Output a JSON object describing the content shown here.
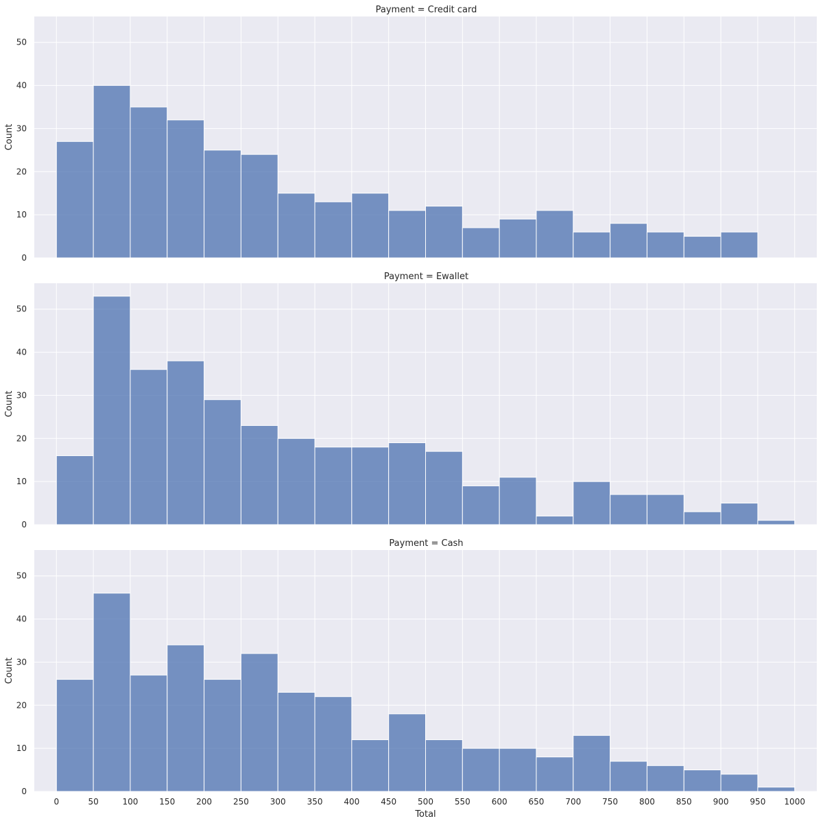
{
  "chart_data": {
    "type": "bar",
    "xlabel": "Total",
    "ylabel": "Count",
    "xlim": [
      -30,
      1030
    ],
    "ylim": [
      0,
      56
    ],
    "xticks": [
      0,
      50,
      100,
      150,
      200,
      250,
      300,
      350,
      400,
      450,
      500,
      550,
      600,
      650,
      700,
      750,
      800,
      850,
      900,
      950,
      1000
    ],
    "yticks": [
      0,
      10,
      20,
      30,
      40,
      50
    ],
    "bin_edges": [
      0,
      50,
      100,
      150,
      200,
      250,
      300,
      350,
      400,
      450,
      500,
      550,
      600,
      650,
      700,
      750,
      800,
      850,
      900,
      950,
      1000
    ],
    "grid": true,
    "bar_color": "#4c72b0",
    "background_color": "#eaeaf2",
    "panels": [
      {
        "title": "Payment = Credit card",
        "values": [
          27,
          40,
          35,
          32,
          25,
          24,
          15,
          13,
          15,
          11,
          12,
          7,
          9,
          11,
          6,
          8,
          6,
          5,
          6,
          0
        ]
      },
      {
        "title": "Payment = Ewallet",
        "values": [
          16,
          53,
          36,
          38,
          29,
          23,
          20,
          18,
          18,
          19,
          17,
          9,
          11,
          2,
          10,
          7,
          7,
          3,
          5,
          1
        ]
      },
      {
        "title": "Payment = Cash",
        "values": [
          26,
          46,
          27,
          34,
          26,
          32,
          23,
          22,
          12,
          18,
          12,
          10,
          10,
          8,
          13,
          7,
          6,
          5,
          4,
          1
        ]
      }
    ]
  }
}
